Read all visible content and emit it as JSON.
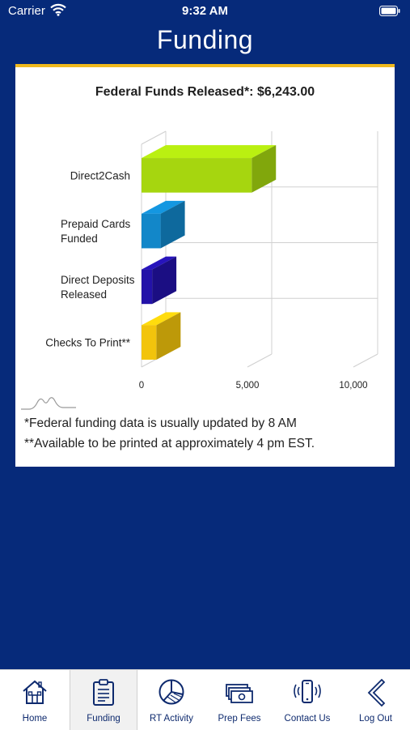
{
  "status_bar": {
    "carrier": "Carrier",
    "time": "9:32 AM"
  },
  "page": {
    "title": "Funding"
  },
  "chart_data": {
    "type": "bar",
    "orientation": "horizontal",
    "style": "3d",
    "title": "Federal Funds Released*: $6,243.00",
    "categories": [
      [
        "Direct2Cash"
      ],
      [
        "Prepaid Cards",
        "Funded"
      ],
      [
        "Direct Deposits",
        "Released"
      ],
      [
        "Checks To Print**"
      ]
    ],
    "values": [
      5200,
      900,
      500,
      700
    ],
    "colors": [
      "#a6d60f",
      "#1287c9",
      "#2312a8",
      "#f2c40c"
    ],
    "xticks": [
      "0",
      "5,000",
      "10,000"
    ],
    "xlim": [
      0,
      10000
    ],
    "grid": true
  },
  "footnotes": [
    "*Federal funding data is usually updated by 8 AM",
    "**Available to be printed at approximately 4 pm EST."
  ],
  "tabs": [
    {
      "label": "Home",
      "icon": "home-icon",
      "active": false
    },
    {
      "label": "Funding",
      "icon": "clipboard-icon",
      "active": true
    },
    {
      "label": "RT Activity",
      "icon": "pie-chart-icon",
      "active": false
    },
    {
      "label": "Prep Fees",
      "icon": "money-icon",
      "active": false
    },
    {
      "label": "Contact Us",
      "icon": "phone-icon",
      "active": false
    },
    {
      "label": "Log Out",
      "icon": "chevron-left-icon",
      "active": false
    }
  ]
}
